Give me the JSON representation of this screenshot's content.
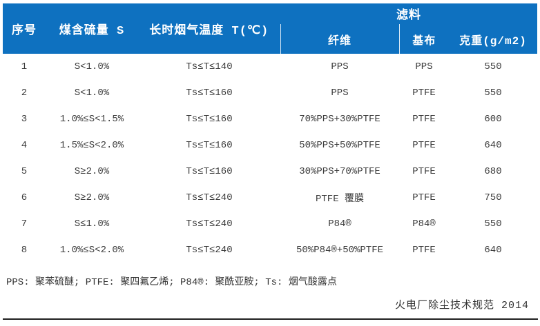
{
  "colors": {
    "header_bg": "#0e71c0",
    "header_text": "#ffffff",
    "body_text": "#3b3b3b",
    "rule": "#1f1f1f"
  },
  "table": {
    "header": {
      "seq": "序号",
      "sulfur": "煤含硫量 S",
      "temp": "长时烟气温度 T(℃)",
      "filter_group": "滤料",
      "fiber": "纤维",
      "base": "基布",
      "weight": "克重(g/m2)"
    },
    "rows": [
      {
        "seq": "1",
        "sulfur": "S<1.0%",
        "temp": "Ts≤T≤140",
        "fiber": "PPS",
        "base": "PPS",
        "weight": "550"
      },
      {
        "seq": "2",
        "sulfur": "S<1.0%",
        "temp": "Ts≤T≤160",
        "fiber": "PPS",
        "base": "PTFE",
        "weight": "550"
      },
      {
        "seq": "3",
        "sulfur": "1.0%≤S<1.5%",
        "temp": "Ts≤T≤160",
        "fiber": "70%PPS+30%PTFE",
        "base": "PTFE",
        "weight": "600"
      },
      {
        "seq": "4",
        "sulfur": "1.5%≤S<2.0%",
        "temp": "Ts≤T≤160",
        "fiber": "50%PPS+50%PTFE",
        "base": "PTFE",
        "weight": "640"
      },
      {
        "seq": "5",
        "sulfur": "S≥2.0%",
        "temp": "Ts≤T≤160",
        "fiber": "30%PPS+70%PTFE",
        "base": "PTFE",
        "weight": "680"
      },
      {
        "seq": "6",
        "sulfur": "S≥2.0%",
        "temp": "Ts≤T≤240",
        "fiber": "PTFE 覆膜",
        "base": "PTFE",
        "weight": "750"
      },
      {
        "seq": "7",
        "sulfur": "S≤1.0%",
        "temp": "Ts≤T≤240",
        "fiber": "P84®",
        "base": "P84®",
        "weight": "550"
      },
      {
        "seq": "8",
        "sulfur": "1.0%≤S<2.0%",
        "temp": "Ts≤T≤240",
        "fiber": "50%P84®+50%PTFE",
        "base": "PTFE",
        "weight": "640"
      }
    ]
  },
  "footnote": "PPS: 聚苯硫醚; PTFE: 聚四氟乙烯; P84®: 聚酰亚胺; Ts: 烟气酸露点",
  "source": "火电厂除尘技术规范 2014"
}
